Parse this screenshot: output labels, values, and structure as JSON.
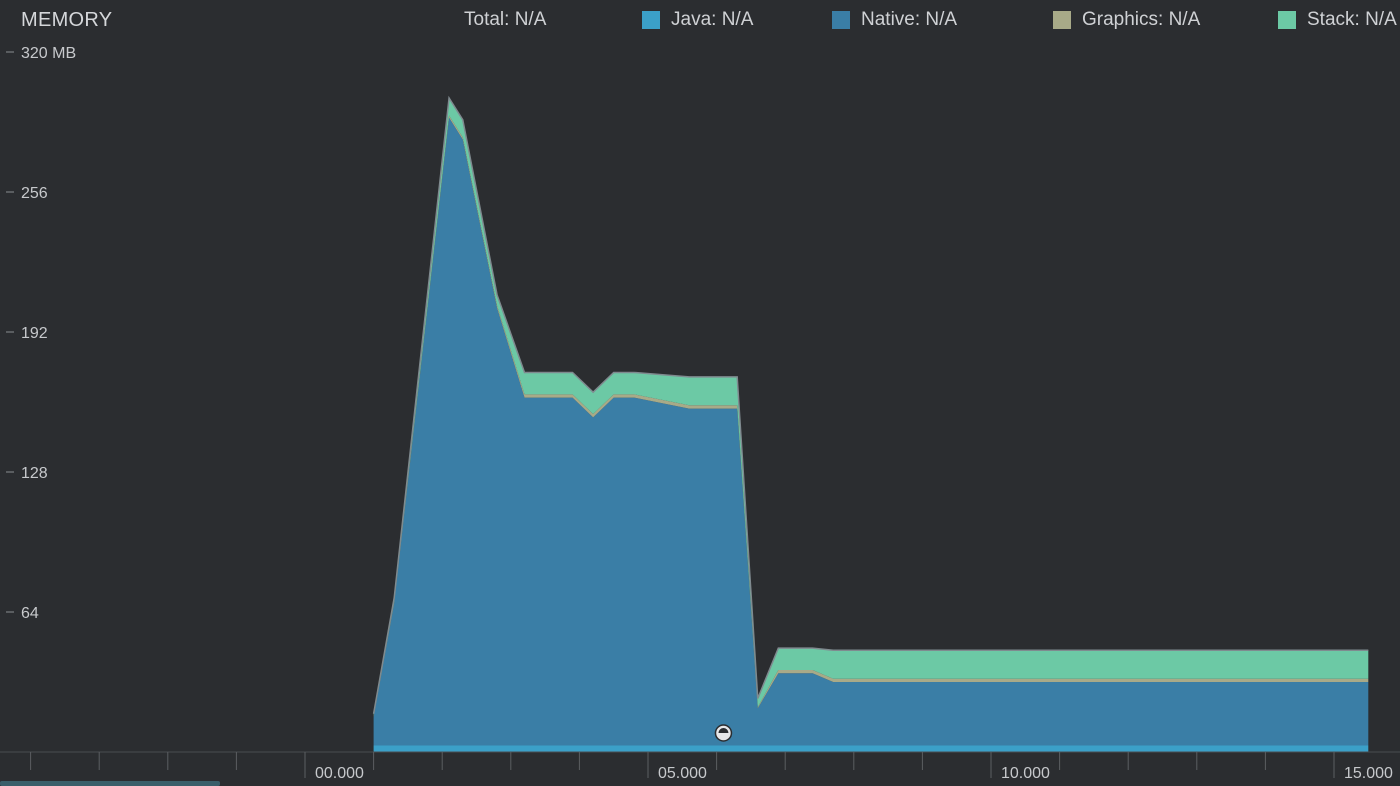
{
  "header": {
    "title": "MEMORY"
  },
  "legend": {
    "total": "Total: N/A",
    "items": [
      {
        "label": "Java: N/A",
        "color": "#3ba0c8"
      },
      {
        "label": "Native: N/A",
        "color": "#3a7ea6"
      },
      {
        "label": "Graphics: N/A",
        "color": "#a8aa88"
      },
      {
        "label": "Stack: N/A",
        "color": "#6cc9a5"
      }
    ]
  },
  "chart_data": {
    "type": "area",
    "stacked": true,
    "title": "MEMORY",
    "ylabel": "",
    "xlabel": "",
    "ylim": [
      0,
      320
    ],
    "xlim": [
      -3.0,
      15.5
    ],
    "y_ticks": [
      64,
      128,
      192,
      256,
      320
    ],
    "y_tick_labels": [
      "64",
      "128",
      "192",
      "256",
      "320 MB"
    ],
    "x_ticks": [
      0,
      5,
      10,
      15
    ],
    "x_tick_labels": [
      "00.000",
      "05.000",
      "10.000",
      "15.000"
    ],
    "grid": false,
    "x": [
      1.0,
      1.3,
      2.1,
      2.3,
      2.8,
      3.2,
      3.9,
      4.2,
      4.5,
      4.8,
      5.6,
      6.3,
      6.6,
      6.9,
      7.4,
      7.7,
      15.5
    ],
    "series": [
      {
        "name": "Java",
        "color": "#3ba0c8",
        "values": [
          3,
          3,
          3,
          3,
          3,
          3,
          3,
          3,
          3,
          3,
          3,
          3,
          3,
          3,
          3,
          3,
          3
        ]
      },
      {
        "name": "Native",
        "color": "#3a7ea6",
        "values": [
          13,
          65,
          287,
          277,
          200,
          159,
          159,
          150,
          159,
          159,
          154,
          154,
          17,
          33,
          33,
          29,
          29
        ]
      },
      {
        "name": "Graphics",
        "color": "#a8aa88",
        "values": [
          0.5,
          0.5,
          1,
          1,
          1,
          1.5,
          1.5,
          1.5,
          1.5,
          1.5,
          1.5,
          1.5,
          0.5,
          1.5,
          1.5,
          1.5,
          1.5
        ]
      },
      {
        "name": "Stack",
        "color": "#6cc9a5",
        "values": [
          1,
          2,
          8,
          8,
          5,
          10,
          10,
          10,
          10,
          10,
          13,
          13,
          4,
          10,
          10,
          13,
          13
        ]
      }
    ],
    "marker": {
      "x": 6.1,
      "symbol": "gc-event"
    }
  }
}
